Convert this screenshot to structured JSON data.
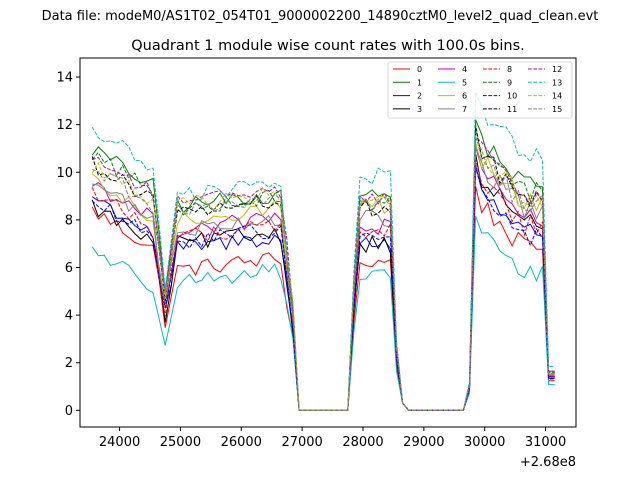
{
  "figure": {
    "suptitle": "Data file: modeM0/AS1T02_054T01_9000002200_14890cztM0_level2_quad_clean.evt"
  },
  "chart_data": {
    "type": "line",
    "title": "Quadrant 1 module wise count rates with 100.0s bins.",
    "xlabel": "",
    "ylabel": "",
    "x_offset_label": "+2.68e8",
    "xlim": [
      23350,
      31500
    ],
    "ylim": [
      -0.7,
      14.8
    ],
    "x_ticks": [
      24000,
      25000,
      26000,
      27000,
      28000,
      29000,
      30000,
      31000
    ],
    "x_tick_labels": [
      "24000",
      "25000",
      "26000",
      "27000",
      "28000",
      "29000",
      "30000",
      "31000"
    ],
    "y_ticks": [
      0,
      2,
      4,
      6,
      8,
      10,
      12,
      14
    ],
    "y_tick_labels": [
      "0",
      "2",
      "4",
      "6",
      "8",
      "10",
      "12",
      "14"
    ],
    "legend_position": "top-right",
    "bin_seconds": 100,
    "segments": [
      {
        "start": 23550,
        "end": 26850
      },
      {
        "start": 27750,
        "end": 28650
      },
      {
        "start": 29650,
        "end": 31150
      }
    ],
    "series": [
      {
        "name": "0",
        "color": "#ff0000",
        "dash": "solid",
        "levels": [
          8.4,
          5.9,
          6.2,
          8.3
        ]
      },
      {
        "name": "1",
        "color": "#008000",
        "dash": "solid",
        "levels": [
          11.0,
          8.6,
          9.0,
          11.0
        ]
      },
      {
        "name": "2",
        "color": "#0000ff",
        "dash": "solid",
        "levels": [
          9.0,
          6.8,
          7.0,
          9.0
        ]
      },
      {
        "name": "3",
        "color": "#000000",
        "dash": "solid",
        "levels": [
          8.6,
          7.0,
          7.0,
          9.4
        ]
      },
      {
        "name": "4",
        "color": "#bf00bf",
        "dash": "solid",
        "levels": [
          9.6,
          7.6,
          7.7,
          9.6
        ]
      },
      {
        "name": "5",
        "color": "#00bfbf",
        "dash": "solid",
        "levels": [
          6.8,
          5.4,
          5.5,
          7.2
        ]
      },
      {
        "name": "6",
        "color": "#bfbf00",
        "dash": "solid",
        "levels": [
          9.6,
          8.0,
          8.6,
          10.2
        ]
      },
      {
        "name": "7",
        "color": "#808080",
        "dash": "solid",
        "levels": [
          9.6,
          7.6,
          8.0,
          9.9
        ]
      },
      {
        "name": "8",
        "color": "#ff0000",
        "dash": "dashed",
        "levels": [
          9.2,
          7.3,
          7.5,
          9.3
        ]
      },
      {
        "name": "9",
        "color": "#008000",
        "dash": "dashed",
        "levels": [
          10.8,
          8.5,
          8.8,
          10.7
        ]
      },
      {
        "name": "10",
        "color": "#0000ff",
        "dash": "dashed",
        "levels": [
          8.8,
          7.1,
          7.3,
          8.8
        ]
      },
      {
        "name": "11",
        "color": "#000000",
        "dash": "dashed",
        "levels": [
          10.4,
          8.3,
          8.5,
          10.4
        ]
      },
      {
        "name": "12",
        "color": "#bf00bf",
        "dash": "dashed",
        "levels": [
          10.7,
          8.9,
          9.0,
          10.5
        ]
      },
      {
        "name": "13",
        "color": "#00bfbf",
        "dash": "dashed",
        "levels": [
          11.8,
          9.0,
          9.8,
          12.3
        ]
      },
      {
        "name": "14",
        "color": "#bfbf00",
        "dash": "dashed",
        "levels": [
          10.3,
          8.6,
          8.7,
          10.4
        ]
      },
      {
        "name": "15",
        "color": "#808080",
        "dash": "dashed",
        "levels": [
          10.2,
          8.4,
          8.6,
          10.2
        ]
      }
    ]
  }
}
